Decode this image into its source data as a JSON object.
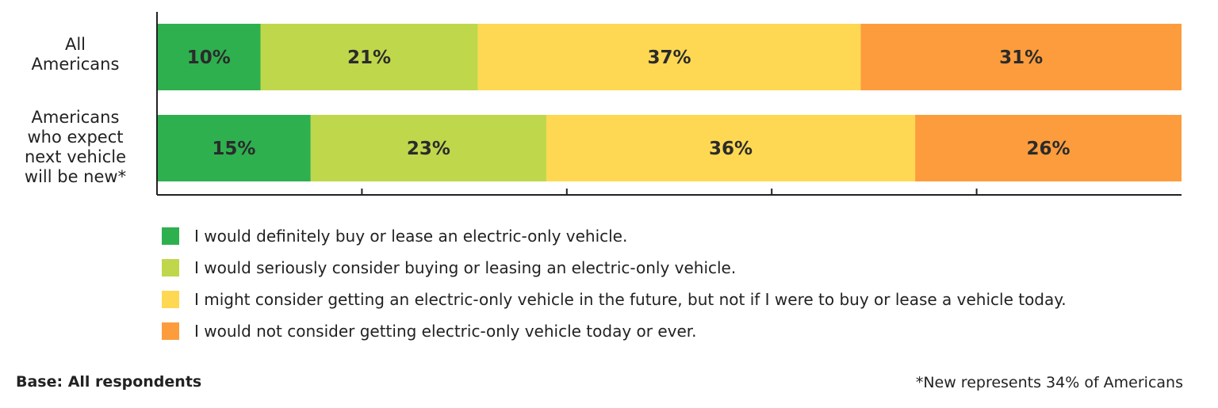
{
  "chart_data": {
    "type": "bar",
    "orientation": "horizontal",
    "stacked": true,
    "categories": [
      "All Americans",
      "Americans who expect next vehicle will be new*"
    ],
    "category_lines": [
      [
        "All",
        "Americans"
      ],
      [
        "Americans",
        "who expect",
        "next vehicle",
        "will be new*"
      ]
    ],
    "series": [
      {
        "name": "I would definitely buy or lease an electric-only vehicle.",
        "color": "#2eb04f",
        "values": [
          10,
          15
        ],
        "labels": [
          "10%",
          "15%"
        ]
      },
      {
        "name": "I would seriously consider buying or leasing an electric-only vehicle.",
        "color": "#bfd74b",
        "values": [
          21,
          23
        ],
        "labels": [
          "21%",
          "23%"
        ]
      },
      {
        "name": "I might consider getting an electric-only vehicle in the future, but not if I were to buy or lease a vehicle today.",
        "color": "#fed852",
        "values": [
          37,
          36
        ],
        "labels": [
          "37%",
          "36%"
        ]
      },
      {
        "name": "I would not consider getting electric-only vehicle today or ever.",
        "color": "#fd9c3c",
        "values": [
          31,
          26
        ],
        "labels": [
          "31%",
          "26%"
        ]
      }
    ],
    "xlim": [
      0,
      100
    ],
    "x_ticks": [
      20,
      40,
      60,
      80
    ],
    "grid": false,
    "legend_position": "bottom"
  },
  "notes": {
    "base": "Base: All respondents",
    "footnote": "*New represents 34% of Americans"
  }
}
